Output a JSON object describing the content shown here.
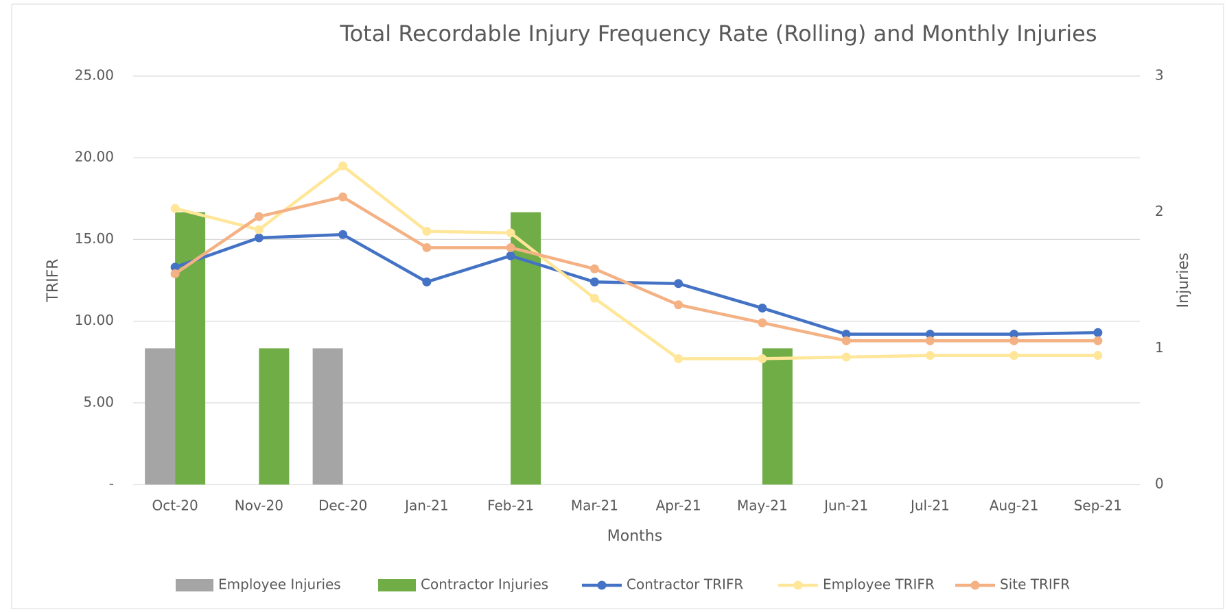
{
  "chart_data": {
    "type": "bar-line",
    "title": "Total Recordable Injury Frequency Rate (Rolling)  and Monthly Injuries",
    "x_label": "Months",
    "y_label": "TRIFR",
    "y2_label": "Injuries",
    "categories": [
      "Oct-20",
      "Nov-20",
      "Dec-20",
      "Jan-21",
      "Feb-21",
      "Mar-21",
      "Apr-21",
      "May-21",
      "Jun-21",
      "Jul-21",
      "Aug-21",
      "Sep-21"
    ],
    "ylim": [
      0,
      25
    ],
    "yticks": [
      {
        "value": 0,
        "label": "-"
      },
      {
        "value": 5,
        "label": "5.00"
      },
      {
        "value": 10,
        "label": "10.00"
      },
      {
        "value": 15,
        "label": "15.00"
      },
      {
        "value": 20,
        "label": "20.00"
      },
      {
        "value": 25,
        "label": "25.00"
      }
    ],
    "y2lim": [
      0,
      3
    ],
    "y2ticks": [
      0,
      1,
      2,
      3
    ],
    "grid": true,
    "legend": "bottom",
    "series": [
      {
        "name": "Employee Injuries",
        "type": "bar",
        "axis": "y2",
        "color": "#a5a5a5",
        "values": [
          1,
          0,
          1,
          0,
          0,
          0,
          0,
          0,
          0,
          0,
          0,
          0
        ]
      },
      {
        "name": "Contractor Injuries",
        "type": "bar",
        "axis": "y2",
        "color": "#70ad47",
        "values": [
          2,
          1,
          0,
          0,
          2,
          0,
          0,
          1,
          0,
          0,
          0,
          0
        ]
      },
      {
        "name": "Contractor TRIFR",
        "type": "line",
        "color": "#4472c4",
        "values": [
          13.3,
          15.1,
          15.3,
          12.4,
          14.0,
          12.4,
          12.3,
          10.8,
          9.2,
          9.2,
          9.2,
          9.3
        ]
      },
      {
        "name": "Employee TRIFR",
        "type": "line",
        "color": "#ffe699",
        "values": [
          16.9,
          15.6,
          19.5,
          15.5,
          15.4,
          11.4,
          7.7,
          7.7,
          7.8,
          7.9,
          7.9,
          7.9
        ]
      },
      {
        "name": "Site TRIFR",
        "type": "line",
        "color": "#f4b183",
        "values": [
          12.9,
          16.4,
          17.6,
          14.5,
          14.5,
          13.2,
          11.0,
          9.9,
          8.8,
          8.8,
          8.8,
          8.8
        ]
      }
    ]
  }
}
